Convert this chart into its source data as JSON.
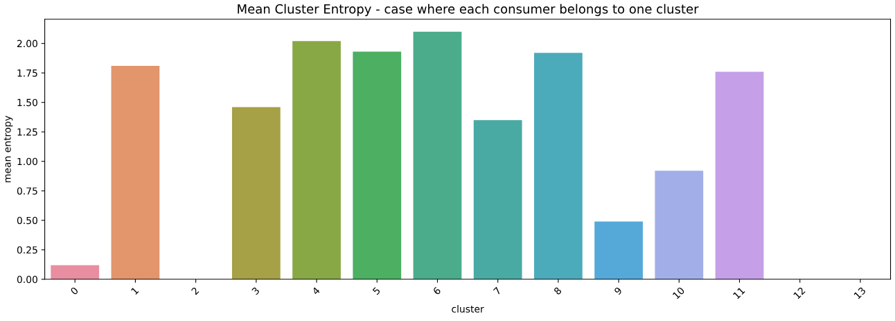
{
  "chart_data": {
    "type": "bar",
    "title": "Mean Cluster Entropy - case where each consumer belongs to one cluster",
    "xlabel": "cluster",
    "ylabel": "mean entropy",
    "categories": [
      "0",
      "1",
      "2",
      "3",
      "4",
      "5",
      "6",
      "7",
      "8",
      "9",
      "10",
      "11",
      "12",
      "13"
    ],
    "values": [
      0.12,
      1.81,
      0,
      1.46,
      2.02,
      1.93,
      2.1,
      1.35,
      1.92,
      0.49,
      0.92,
      1.76,
      0,
      0
    ],
    "colors": [
      "#e88ea0",
      "#e3956b",
      null,
      "#a6a046",
      "#88a846",
      "#4caf62",
      "#4aac8a",
      "#49aaa4",
      "#4cabba",
      "#55a9d9",
      "#a1aee8",
      "#c59fe8",
      null,
      null
    ],
    "ylim": [
      0,
      2.205
    ],
    "yticks": [
      {
        "value": 0,
        "label": "0.00"
      },
      {
        "value": 0.25,
        "label": "0.25"
      },
      {
        "value": 0.5,
        "label": "0.50"
      },
      {
        "value": 0.75,
        "label": "0.75"
      },
      {
        "value": 1,
        "label": "1.00"
      },
      {
        "value": 1.25,
        "label": "1.25"
      },
      {
        "value": 1.5,
        "label": "1.50"
      },
      {
        "value": 1.75,
        "label": "1.75"
      },
      {
        "value": 2,
        "label": "2.00"
      }
    ],
    "grid": false,
    "legend": false
  }
}
